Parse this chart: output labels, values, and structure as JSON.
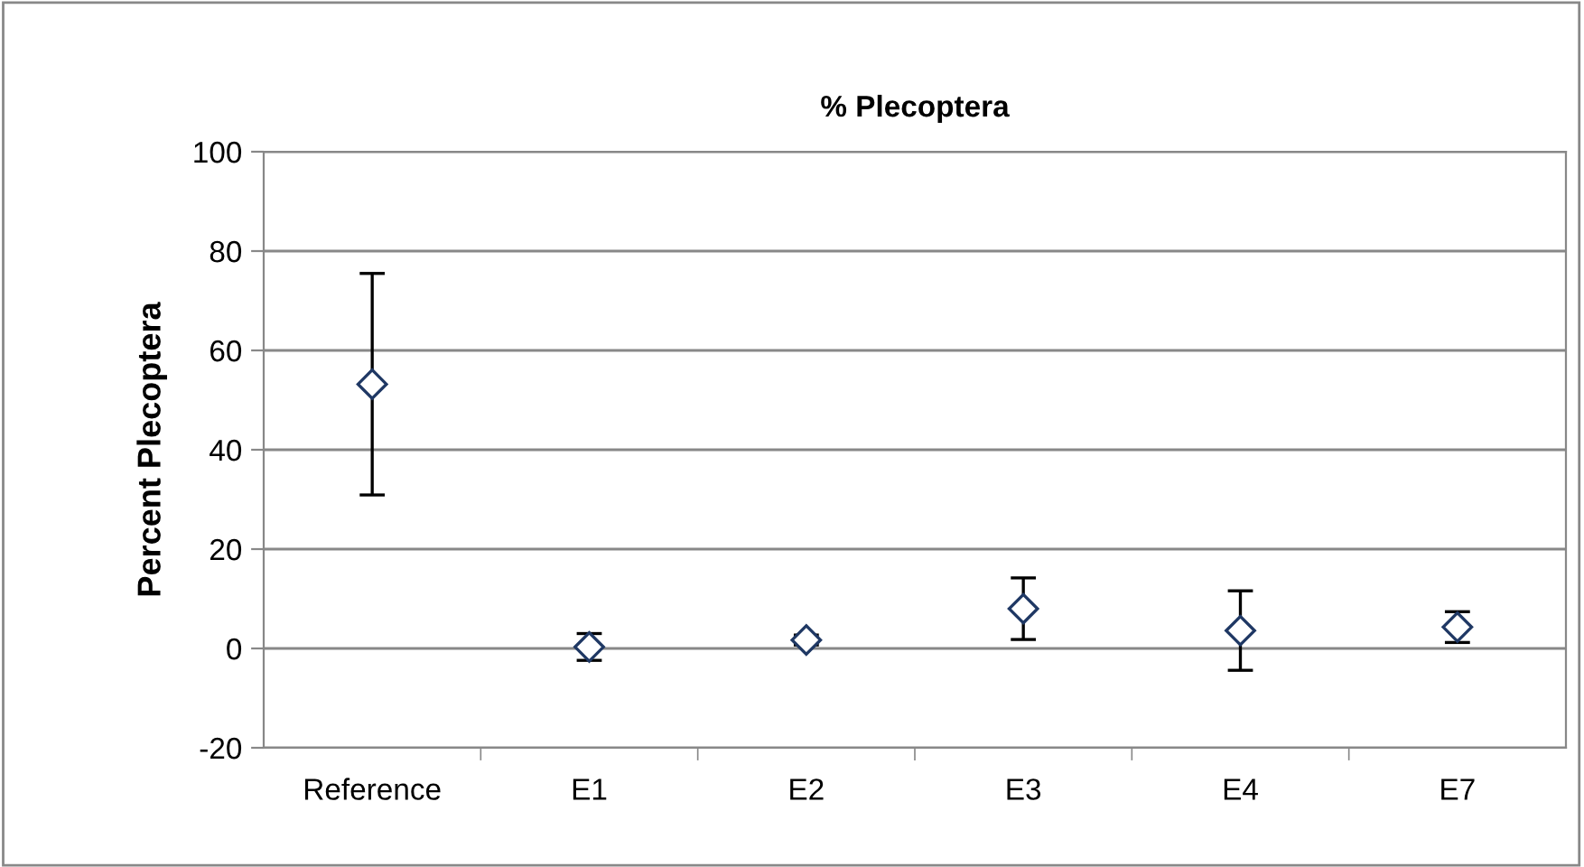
{
  "chart_data": {
    "type": "scatter",
    "title": "% Plecoptera",
    "ylabel": "Percent Plecoptera",
    "categories": [
      "Reference",
      "E1",
      "E2",
      "E3",
      "E4",
      "E7"
    ],
    "series": [
      {
        "color": "#1f3864",
        "values": [
          53.2,
          0.3,
          1.7,
          8.0,
          3.6,
          4.3
        ],
        "errors": [
          22.3,
          2.7,
          1.0,
          6.2,
          8.0,
          3.1
        ]
      }
    ],
    "ylim": [
      -20,
      100
    ],
    "yticks": [
      -20,
      0,
      20,
      40,
      60,
      80,
      100
    ],
    "grid": "y",
    "marker": "diamond",
    "legend": false
  }
}
